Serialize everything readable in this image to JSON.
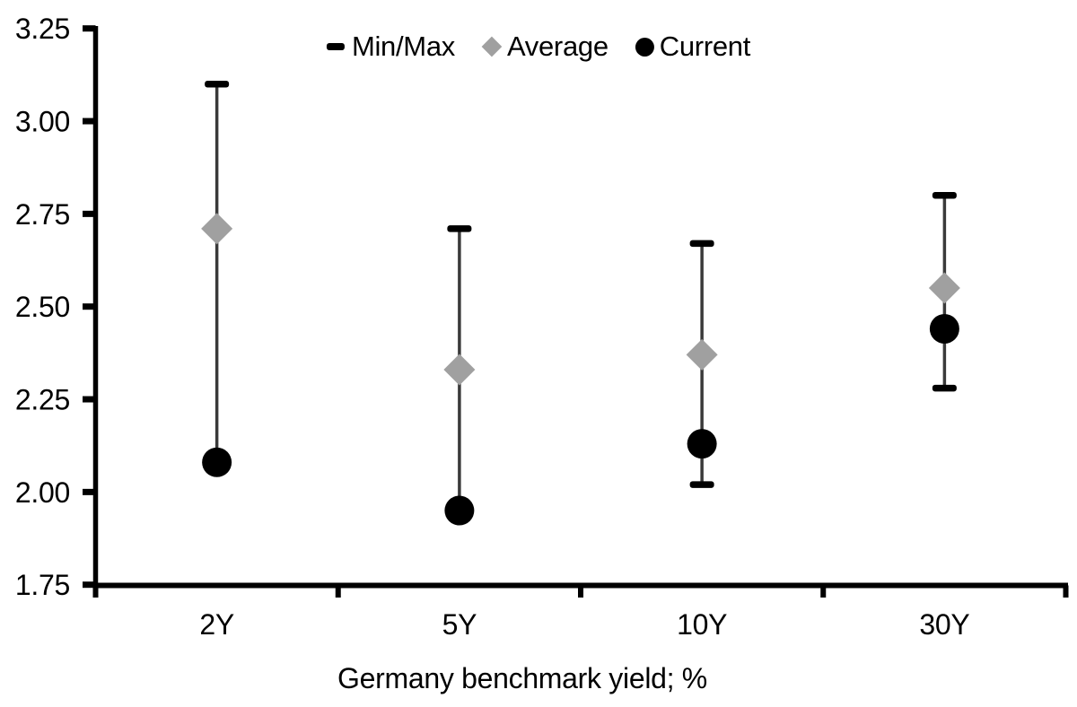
{
  "chart_data": {
    "type": "scatter",
    "subtype": "min-max-range-with-point-markers",
    "title": "",
    "xlabel": "Germany benchmark yield; %",
    "ylabel": "",
    "categories": [
      "2Y",
      "5Y",
      "10Y",
      "30Y"
    ],
    "ylim": [
      1.75,
      3.25
    ],
    "ytick_interval": 0.25,
    "ytick_labels": [
      "3.25",
      "3.00",
      "2.75",
      "2.50",
      "2.25",
      "2.00",
      "1.75"
    ],
    "grid": false,
    "legend_position": "top-center",
    "series": [
      {
        "name": "Min/Max",
        "marker": "dash",
        "role": "range",
        "min": [
          2.08,
          1.95,
          2.02,
          2.28
        ],
        "max": [
          3.1,
          2.71,
          2.67,
          2.8
        ]
      },
      {
        "name": "Average",
        "marker": "diamond",
        "role": "point",
        "values": [
          2.71,
          2.33,
          2.37,
          2.55
        ]
      },
      {
        "name": "Current",
        "marker": "circle",
        "role": "point",
        "values": [
          2.08,
          1.95,
          2.13,
          2.44
        ]
      }
    ],
    "colors": {
      "range_line": "#3a3a3a",
      "range_cap": "#000000",
      "average_marker": "#a0a0a0",
      "current_marker": "#000000",
      "axis": "#000000",
      "text": "#000000",
      "background": "#ffffff"
    }
  }
}
